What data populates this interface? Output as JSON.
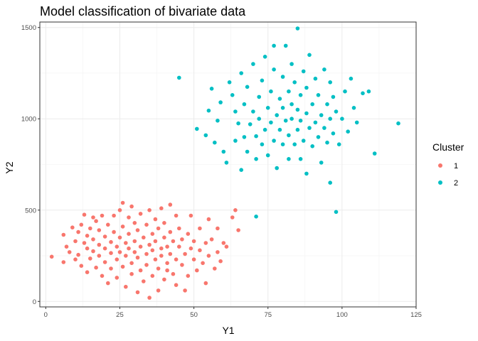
{
  "chart_data": {
    "type": "scatter",
    "title": "Model classification of bivariate data",
    "xlabel": "Y1",
    "ylabel": "Y2",
    "xlim": [
      -2,
      125
    ],
    "ylim": [
      -30,
      1530
    ],
    "x_ticks": [
      0,
      25,
      50,
      75,
      100,
      125
    ],
    "y_ticks": [
      0,
      500,
      1000,
      1500
    ],
    "grid": true,
    "legend": {
      "title": "Cluster",
      "position": "right"
    },
    "series": [
      {
        "name": "1",
        "color": "#F8766D",
        "points": [
          [
            2,
            245
          ],
          [
            6,
            215
          ],
          [
            6,
            365
          ],
          [
            7,
            300
          ],
          [
            8,
            270
          ],
          [
            9,
            405
          ],
          [
            10,
            230
          ],
          [
            10,
            330
          ],
          [
            11,
            380
          ],
          [
            11,
            255
          ],
          [
            12,
            420
          ],
          [
            12,
            195
          ],
          [
            13,
            320
          ],
          [
            13,
            475
          ],
          [
            14,
            290
          ],
          [
            14,
            360
          ],
          [
            14,
            160
          ],
          [
            15,
            400
          ],
          [
            15,
            235
          ],
          [
            16,
            460
          ],
          [
            16,
            275
          ],
          [
            16,
            340
          ],
          [
            17,
            185
          ],
          [
            17,
            440
          ],
          [
            18,
            310
          ],
          [
            18,
            250
          ],
          [
            18,
            390
          ],
          [
            19,
            470
          ],
          [
            19,
            140
          ],
          [
            20,
            290
          ],
          [
            20,
            355
          ],
          [
            20,
            215
          ],
          [
            21,
            420
          ],
          [
            21,
            100
          ],
          [
            22,
            325
          ],
          [
            22,
            265
          ],
          [
            22,
            180
          ],
          [
            23,
            380
          ],
          [
            23,
            470
          ],
          [
            24,
            300
          ],
          [
            24,
            230
          ],
          [
            24,
            130
          ],
          [
            25,
            350
          ],
          [
            25,
            500
          ],
          [
            25,
            270
          ],
          [
            26,
            410
          ],
          [
            26,
            190
          ],
          [
            26,
            540
          ],
          [
            27,
            320
          ],
          [
            27,
            250
          ],
          [
            27,
            80
          ],
          [
            28,
            460
          ],
          [
            28,
            290
          ],
          [
            28,
            370
          ],
          [
            29,
            210
          ],
          [
            29,
            150
          ],
          [
            29,
            520
          ],
          [
            30,
            330
          ],
          [
            30,
            270
          ],
          [
            30,
            430
          ],
          [
            31,
            50
          ],
          [
            31,
            390
          ],
          [
            31,
            240
          ],
          [
            32,
            300
          ],
          [
            32,
            170
          ],
          [
            32,
            480
          ],
          [
            33,
            350
          ],
          [
            33,
            110
          ],
          [
            34,
            260
          ],
          [
            34,
            420
          ],
          [
            34,
            200
          ],
          [
            35,
            310
          ],
          [
            35,
            20
          ],
          [
            35,
            500
          ],
          [
            36,
            370
          ],
          [
            36,
            140
          ],
          [
            36,
            280
          ],
          [
            37,
            230
          ],
          [
            37,
            450
          ],
          [
            37,
            330
          ],
          [
            38,
            180
          ],
          [
            38,
            400
          ],
          [
            38,
            60
          ],
          [
            39,
            290
          ],
          [
            39,
            510
          ],
          [
            39,
            250
          ],
          [
            40,
            350
          ],
          [
            40,
            120
          ],
          [
            40,
            430
          ],
          [
            41,
            210
          ],
          [
            41,
            300
          ],
          [
            41,
            170
          ],
          [
            42,
            380
          ],
          [
            42,
            530
          ],
          [
            42,
            260
          ],
          [
            43,
            150
          ],
          [
            43,
            330
          ],
          [
            44,
            470
          ],
          [
            44,
            230
          ],
          [
            44,
            90
          ],
          [
            45,
            300
          ],
          [
            45,
            400
          ],
          [
            46,
            200
          ],
          [
            46,
            340
          ],
          [
            47,
            260
          ],
          [
            47,
            60
          ],
          [
            48,
            370
          ],
          [
            48,
            140
          ],
          [
            49,
            290
          ],
          [
            49,
            470
          ],
          [
            50,
            230
          ],
          [
            50,
            330
          ],
          [
            51,
            170
          ],
          [
            52,
            400
          ],
          [
            52,
            280
          ],
          [
            53,
            210
          ],
          [
            54,
            320
          ],
          [
            54,
            100
          ],
          [
            55,
            250
          ],
          [
            55,
            450
          ],
          [
            56,
            340
          ],
          [
            57,
            180
          ],
          [
            58,
            400
          ],
          [
            58,
            270
          ],
          [
            59,
            220
          ],
          [
            60,
            320
          ],
          [
            61,
            300
          ],
          [
            63,
            460
          ],
          [
            64,
            500
          ],
          [
            65,
            390
          ]
        ]
      },
      {
        "name": "2",
        "color": "#00BFC4",
        "points": [
          [
            45,
            1225
          ],
          [
            51,
            945
          ],
          [
            54,
            910
          ],
          [
            55,
            1045
          ],
          [
            56,
            1165
          ],
          [
            57,
            870
          ],
          [
            58,
            990
          ],
          [
            59,
            1090
          ],
          [
            60,
            820
          ],
          [
            61,
            760
          ],
          [
            62,
            1200
          ],
          [
            63,
            1130
          ],
          [
            64,
            880
          ],
          [
            64,
            1040
          ],
          [
            65,
            975
          ],
          [
            66,
            720
          ],
          [
            66,
            1250
          ],
          [
            67,
            900
          ],
          [
            67,
            1080
          ],
          [
            68,
            1175
          ],
          [
            68,
            820
          ],
          [
            69,
            970
          ],
          [
            70,
            1300
          ],
          [
            70,
            1040
          ],
          [
            71,
            780
          ],
          [
            71,
            905
          ],
          [
            71,
            465
          ],
          [
            72,
            1120
          ],
          [
            72,
            1000
          ],
          [
            73,
            860
          ],
          [
            73,
            1210
          ],
          [
            74,
            940
          ],
          [
            74,
            1340
          ],
          [
            75,
            1060
          ],
          [
            75,
            800
          ],
          [
            76,
            1150
          ],
          [
            76,
            980
          ],
          [
            77,
            880
          ],
          [
            77,
            1270
          ],
          [
            77,
            1400
          ],
          [
            78,
            1020
          ],
          [
            78,
            730
          ],
          [
            79,
            1110
          ],
          [
            79,
            940
          ],
          [
            80,
            860
          ],
          [
            80,
            1230
          ],
          [
            80,
            1060
          ],
          [
            81,
            990
          ],
          [
            81,
            1400
          ],
          [
            82,
            780
          ],
          [
            82,
            1150
          ],
          [
            82,
            910
          ],
          [
            83,
            1080
          ],
          [
            83,
            1000
          ],
          [
            83,
            1300
          ],
          [
            84,
            860
          ],
          [
            84,
            1200
          ],
          [
            85,
            940
          ],
          [
            85,
            1050
          ],
          [
            85,
            1495
          ],
          [
            86,
            780
          ],
          [
            86,
            1130
          ],
          [
            86,
            990
          ],
          [
            87,
            1260
          ],
          [
            87,
            880
          ],
          [
            88,
            1030
          ],
          [
            88,
            1170
          ],
          [
            88,
            700
          ],
          [
            89,
            950
          ],
          [
            89,
            1350
          ],
          [
            90,
            1080
          ],
          [
            90,
            850
          ],
          [
            91,
            1220
          ],
          [
            91,
            980
          ],
          [
            92,
            900
          ],
          [
            92,
            1130
          ],
          [
            93,
            1020
          ],
          [
            93,
            760
          ],
          [
            94,
            1270
          ],
          [
            94,
            950
          ],
          [
            95,
            1080
          ],
          [
            95,
            870
          ],
          [
            96,
            1000
          ],
          [
            96,
            1200
          ],
          [
            96,
            650
          ],
          [
            97,
            920
          ],
          [
            97,
            1120
          ],
          [
            98,
            1040
          ],
          [
            98,
            490
          ],
          [
            99,
            860
          ],
          [
            100,
            1000
          ],
          [
            101,
            1150
          ],
          [
            102,
            930
          ],
          [
            103,
            1220
          ],
          [
            104,
            1060
          ],
          [
            105,
            980
          ],
          [
            107,
            1140
          ],
          [
            109,
            1150
          ],
          [
            111,
            810
          ],
          [
            119,
            975
          ]
        ]
      }
    ]
  }
}
